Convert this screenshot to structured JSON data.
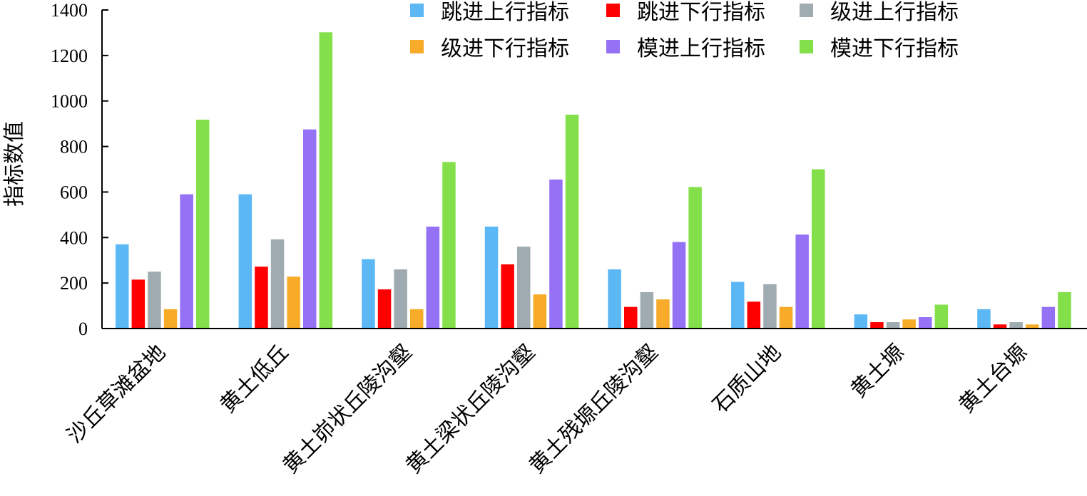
{
  "chart_data": {
    "type": "bar",
    "title": "",
    "xlabel": "",
    "ylabel": "指标数值",
    "ylim": [
      0,
      1400
    ],
    "yticks": [
      0,
      200,
      400,
      600,
      800,
      1000,
      1200,
      1400
    ],
    "grid": false,
    "legend_position": "top-right",
    "categories": [
      "沙丘草滩盆地",
      "黄土低丘",
      "黄土峁状丘陵沟壑",
      "黄土梁状丘陵沟壑",
      "黄土残塬丘陵沟壑",
      "石质山地",
      "黄土塬",
      "黄土台塬"
    ],
    "series": [
      {
        "name": "跳进上行指标",
        "color": "#5bb8f5",
        "values": [
          370,
          590,
          305,
          448,
          260,
          205,
          62,
          85
        ]
      },
      {
        "name": "跳进下行指标",
        "color": "#ff0000",
        "values": [
          215,
          272,
          172,
          282,
          95,
          118,
          28,
          18
        ]
      },
      {
        "name": "级进上行指标",
        "color": "#9fabb0",
        "values": [
          250,
          392,
          260,
          360,
          160,
          195,
          28,
          28
        ]
      },
      {
        "name": "级进下行指标",
        "color": "#f8ab29",
        "values": [
          85,
          228,
          85,
          150,
          128,
          95,
          40,
          18
        ]
      },
      {
        "name": "模进上行指标",
        "color": "#9471f5",
        "values": [
          590,
          875,
          448,
          655,
          380,
          413,
          50,
          95
        ]
      },
      {
        "name": "模进下行指标",
        "color": "#84e04a",
        "values": [
          918,
          1302,
          732,
          940,
          622,
          700,
          105,
          160
        ]
      }
    ]
  }
}
